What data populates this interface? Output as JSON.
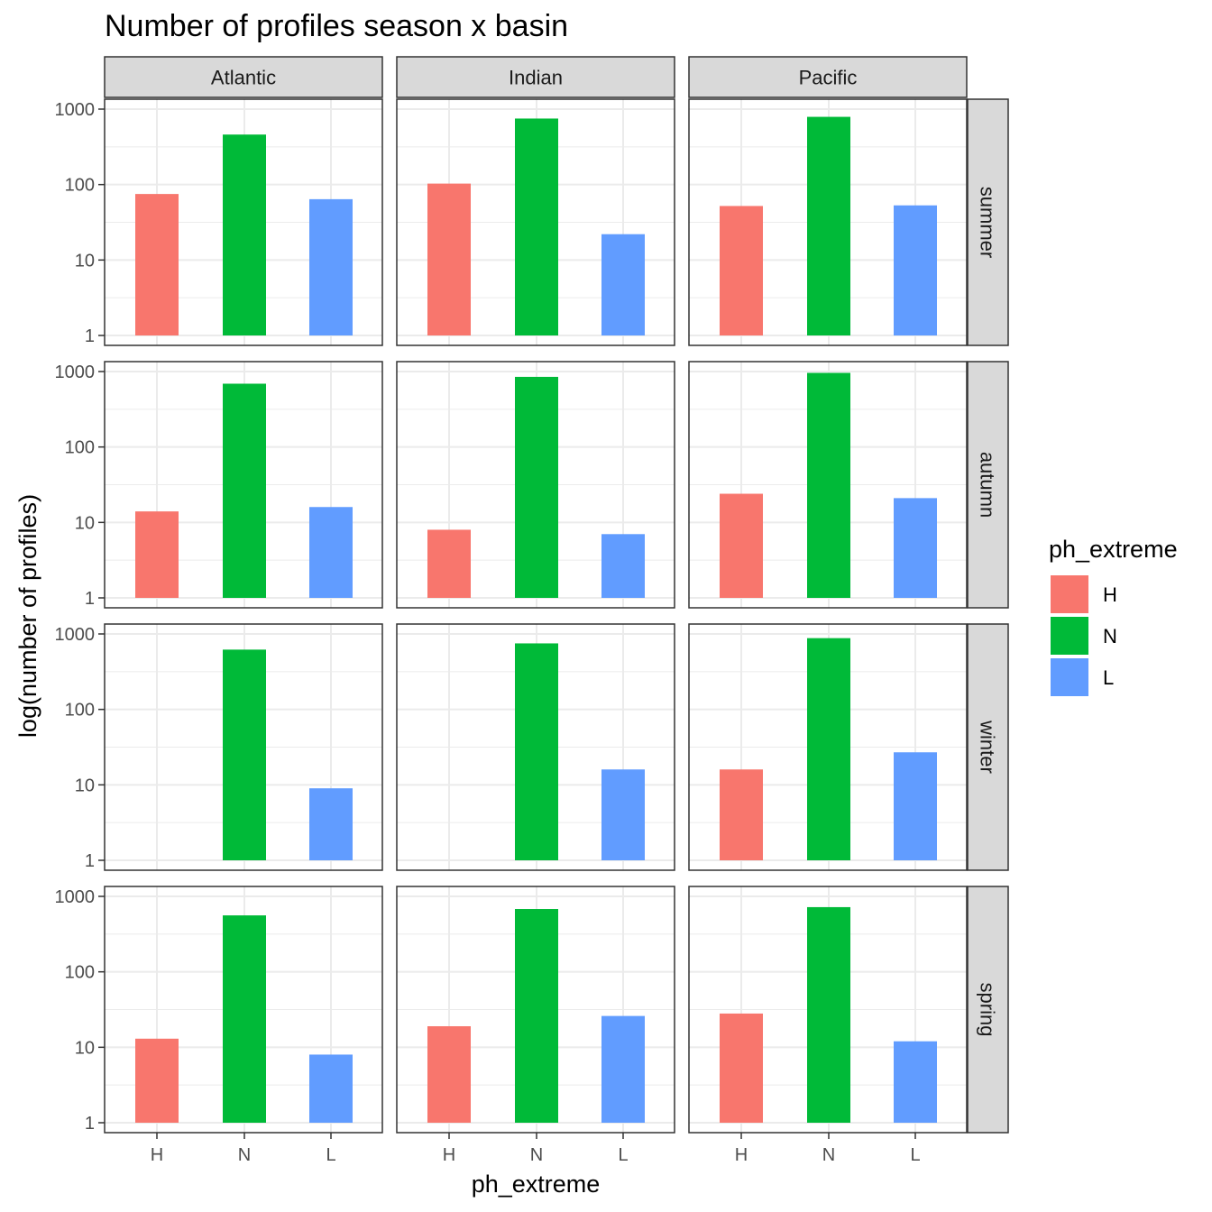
{
  "chart_data": {
    "type": "bar",
    "title": "Number of profiles season x basin",
    "xlabel": "ph_extreme",
    "ylabel": "log(number of profiles)",
    "y_scale": "log10",
    "ylim": [
      1,
      1000
    ],
    "y_ticks": [
      1,
      10,
      100,
      1000
    ],
    "y_tick_labels": [
      "1",
      "10",
      "100",
      "1000"
    ],
    "categories": [
      "H",
      "N",
      "L"
    ],
    "basins": [
      "Atlantic",
      "Indian",
      "Pacific"
    ],
    "seasons": [
      "summer",
      "autumn",
      "winter",
      "spring"
    ],
    "legend": {
      "title": "ph_extreme",
      "position": "right",
      "items": [
        {
          "label": "H",
          "color": "#F8766D"
        },
        {
          "label": "N",
          "color": "#00BA38"
        },
        {
          "label": "L",
          "color": "#619CFF"
        }
      ]
    },
    "panels": [
      {
        "season": "summer",
        "basin": "Atlantic",
        "values": [
          75,
          460,
          64
        ]
      },
      {
        "season": "summer",
        "basin": "Indian",
        "values": [
          103,
          750,
          22
        ]
      },
      {
        "season": "summer",
        "basin": "Pacific",
        "values": [
          52,
          790,
          53
        ]
      },
      {
        "season": "autumn",
        "basin": "Atlantic",
        "values": [
          14,
          690,
          16
        ]
      },
      {
        "season": "autumn",
        "basin": "Indian",
        "values": [
          8,
          850,
          7
        ]
      },
      {
        "season": "autumn",
        "basin": "Pacific",
        "values": [
          24,
          960,
          21
        ]
      },
      {
        "season": "winter",
        "basin": "Atlantic",
        "values": [
          null,
          620,
          9
        ]
      },
      {
        "season": "winter",
        "basin": "Indian",
        "values": [
          null,
          750,
          16
        ]
      },
      {
        "season": "winter",
        "basin": "Pacific",
        "values": [
          16,
          880,
          27
        ]
      },
      {
        "season": "spring",
        "basin": "Atlantic",
        "values": [
          13,
          560,
          8
        ]
      },
      {
        "season": "spring",
        "basin": "Indian",
        "values": [
          19,
          680,
          26
        ]
      },
      {
        "season": "spring",
        "basin": "Pacific",
        "values": [
          28,
          720,
          12
        ]
      }
    ]
  }
}
